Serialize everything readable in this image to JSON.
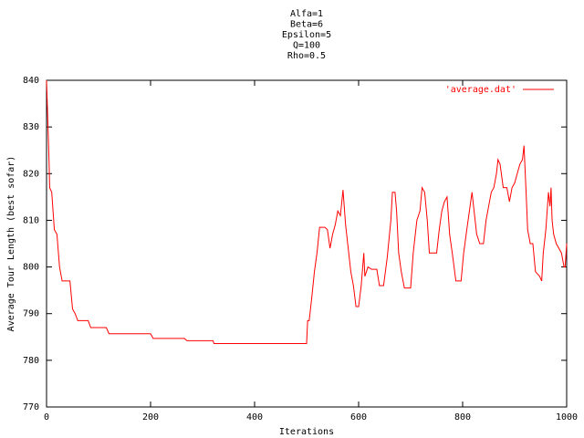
{
  "chart_data": {
    "type": "line",
    "title": [
      "Alfa=1",
      "Beta=6",
      "Epsilon=5",
      "Q=100",
      "Rho=0.5"
    ],
    "x_label": "Iterations",
    "y_label": "Average Tour Length (best sofar)",
    "xlim": [
      0,
      1000
    ],
    "xticks": [
      0,
      200,
      400,
      600,
      800,
      1000
    ],
    "ylim": [
      770,
      840
    ],
    "yticks": [
      770,
      780,
      790,
      800,
      810,
      820,
      830,
      840
    ],
    "grid": false,
    "legend": "top-right",
    "series": [
      {
        "name": "'average.dat'",
        "color": "#ff0000",
        "x": [
          0,
          2,
          5,
          6,
          10,
          15,
          20,
          25,
          30,
          45,
          50,
          55,
          60,
          80,
          85,
          115,
          120,
          200,
          205,
          265,
          270,
          320,
          322,
          500,
          502,
          505,
          510,
          515,
          520,
          525,
          535,
          540,
          545,
          550,
          555,
          560,
          565,
          570,
          575,
          580,
          585,
          590,
          595,
          600,
          605,
          610,
          612,
          618,
          625,
          635,
          640,
          648,
          655,
          662,
          665,
          670,
          673,
          677,
          682,
          688,
          700,
          705,
          712,
          718,
          722,
          727,
          732,
          736,
          750,
          755,
          760,
          765,
          770,
          775,
          780,
          787,
          797,
          802,
          808,
          813,
          818,
          822,
          827,
          833,
          840,
          845,
          850,
          855,
          860,
          865,
          868,
          872,
          878,
          885,
          890,
          895,
          900,
          905,
          910,
          915,
          918,
          922,
          925,
          930,
          935,
          940,
          948,
          952,
          955,
          960,
          965,
          968,
          970,
          972,
          975,
          980,
          985,
          990,
          995,
          997,
          1000
        ],
        "values": [
          840,
          833,
          822,
          817,
          816,
          808,
          807,
          800,
          797,
          797,
          791,
          790,
          788.5,
          788.5,
          787,
          787,
          785.7,
          785.7,
          784.7,
          784.7,
          784.2,
          784.2,
          783.6,
          783.6,
          788.5,
          788.5,
          793.5,
          799,
          803,
          808.5,
          808.5,
          808,
          804,
          807,
          809,
          812,
          811,
          816.5,
          809,
          804,
          799,
          796,
          791.5,
          791.5,
          796,
          803,
          798,
          800,
          799.5,
          799.5,
          796,
          796,
          802,
          810,
          816,
          816,
          812,
          803,
          799,
          795.5,
          795.5,
          803,
          810,
          812,
          817,
          816,
          810,
          803,
          803,
          808,
          812,
          814,
          815,
          807,
          803,
          797,
          797,
          803,
          808,
          812,
          816,
          812,
          807,
          805,
          805,
          810,
          813,
          816,
          817,
          820,
          823,
          822,
          817,
          817,
          814,
          817,
          818,
          820,
          822,
          823,
          826,
          816,
          808,
          805,
          805,
          799,
          798,
          797,
          803,
          808,
          816,
          813,
          817,
          810,
          807,
          805,
          804,
          803,
          800,
          800,
          805
        ]
      }
    ]
  }
}
